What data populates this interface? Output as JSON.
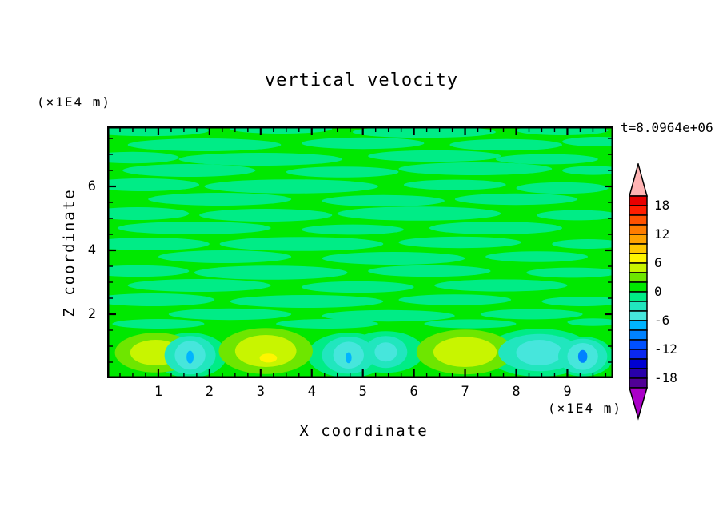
{
  "title": "vertical velocity",
  "time_label": "t=8.0964e+06",
  "x_axis": {
    "label": "X coordinate",
    "unit_label": "(×1E4 m)",
    "ticks": [
      1,
      2,
      3,
      4,
      5,
      6,
      7,
      8,
      9
    ]
  },
  "y_axis": {
    "label": "Z coordinate",
    "unit_label": "(×1E4 m)",
    "ticks": [
      2,
      4,
      6
    ]
  },
  "colorbar": {
    "tick_labels": [
      18,
      12,
      6,
      0,
      -6,
      -12,
      -18
    ],
    "over_color": "#FFB4B4",
    "under_color": "#AA00C8",
    "palette_top_to_bottom": [
      "#E80000",
      "#FF1E00",
      "#FF5200",
      "#FF7D00",
      "#FFA300",
      "#FFC800",
      "#FFF500",
      "#C8F500",
      "#6EE600",
      "#00E800",
      "#00EC86",
      "#21E6BE",
      "#46E6DC",
      "#00B4FF",
      "#0082FF",
      "#0050FF",
      "#0A28F0",
      "#0000D2",
      "#2800AA",
      "#500096"
    ]
  },
  "chart_data": {
    "type": "filled_contour",
    "title": "vertical velocity",
    "xlabel": "X coordinate (×1E4 m)",
    "ylabel": "Z coordinate (×1E4 m)",
    "time_annotation": "t=8.0964e+06",
    "x_range": [
      0,
      9.9
    ],
    "z_range": [
      0,
      7.875
    ],
    "x_major_ticks": [
      1,
      2,
      3,
      4,
      5,
      6,
      7,
      8,
      9
    ],
    "x_minor_step": 0.25,
    "z_major_ticks": [
      2,
      4,
      6
    ],
    "z_minor_step": 0.5,
    "contour_levels": {
      "min": -20,
      "max": 20,
      "step": 2
    },
    "colorbar_labeled_levels": [
      18,
      12,
      6,
      0,
      -6,
      -12,
      -18
    ],
    "field_summary": "Upper region (z>1.6): wavy horizontal streaks alternating between the 0..2 level (bright green) and the -2..0 level (spring green), amplitude within ±2. Bottom boundary layer (z<1.6): convective cells — updraft maxima near x=1 (peak 4..6), x=3.1 (peak 6..8) and x=7 (peak 4..6); downdraft minima near x=1.6 and x=4.7 (min -8..-6), x=5.45 and x=8.45 (min -6..-4), x=9.3 (min -10..-8).",
    "background_color": "#00E800",
    "streak_color": "#00EC86",
    "streak_format": "[x_center, z_center, x_radius, z_radius] in data units, level -2..0",
    "streaks": [
      [
        0.8,
        7.75,
        1.2,
        0.18
      ],
      [
        3.4,
        7.8,
        1.0,
        0.15
      ],
      [
        6.2,
        7.7,
        1.4,
        0.18
      ],
      [
        8.9,
        7.75,
        0.9,
        0.15
      ],
      [
        1.9,
        7.3,
        1.5,
        0.2
      ],
      [
        5.0,
        7.35,
        1.2,
        0.18
      ],
      [
        7.8,
        7.3,
        1.1,
        0.18
      ],
      [
        9.6,
        7.4,
        0.7,
        0.15
      ],
      [
        0.5,
        6.9,
        0.9,
        0.18
      ],
      [
        3.0,
        6.85,
        1.6,
        0.2
      ],
      [
        6.4,
        6.95,
        1.3,
        0.18
      ],
      [
        8.6,
        6.85,
        1.0,
        0.16
      ],
      [
        1.6,
        6.5,
        1.3,
        0.2
      ],
      [
        4.6,
        6.45,
        1.1,
        0.17
      ],
      [
        7.2,
        6.55,
        1.5,
        0.2
      ],
      [
        9.5,
        6.5,
        0.6,
        0.14
      ],
      [
        0.7,
        6.05,
        1.1,
        0.2
      ],
      [
        3.6,
        6.0,
        1.7,
        0.22
      ],
      [
        6.8,
        6.05,
        1.0,
        0.16
      ],
      [
        8.9,
        5.95,
        0.9,
        0.18
      ],
      [
        2.2,
        5.6,
        1.4,
        0.2
      ],
      [
        5.4,
        5.55,
        1.2,
        0.18
      ],
      [
        8.0,
        5.6,
        1.2,
        0.18
      ],
      [
        0.6,
        5.15,
        1.0,
        0.2
      ],
      [
        3.1,
        5.1,
        1.3,
        0.2
      ],
      [
        6.1,
        5.15,
        1.6,
        0.22
      ],
      [
        9.2,
        5.1,
        0.8,
        0.16
      ],
      [
        1.7,
        4.7,
        1.5,
        0.2
      ],
      [
        4.8,
        4.65,
        1.0,
        0.16
      ],
      [
        7.6,
        4.7,
        1.3,
        0.2
      ],
      [
        0.8,
        4.2,
        1.2,
        0.2
      ],
      [
        3.8,
        4.2,
        1.6,
        0.22
      ],
      [
        6.9,
        4.25,
        1.2,
        0.18
      ],
      [
        9.4,
        4.2,
        0.7,
        0.15
      ],
      [
        2.3,
        3.8,
        1.3,
        0.2
      ],
      [
        5.6,
        3.75,
        1.4,
        0.2
      ],
      [
        8.4,
        3.8,
        1.0,
        0.17
      ],
      [
        0.6,
        3.35,
        1.0,
        0.18
      ],
      [
        3.2,
        3.3,
        1.5,
        0.22
      ],
      [
        6.3,
        3.35,
        1.2,
        0.18
      ],
      [
        9.1,
        3.3,
        0.9,
        0.16
      ],
      [
        1.8,
        2.9,
        1.4,
        0.2
      ],
      [
        4.9,
        2.85,
        1.1,
        0.18
      ],
      [
        7.7,
        2.9,
        1.3,
        0.19
      ],
      [
        0.9,
        2.45,
        1.2,
        0.2
      ],
      [
        3.9,
        2.4,
        1.5,
        0.2
      ],
      [
        6.8,
        2.45,
        1.1,
        0.17
      ],
      [
        9.3,
        2.4,
        0.8,
        0.15
      ],
      [
        2.4,
        2.0,
        1.2,
        0.18
      ],
      [
        5.5,
        1.95,
        1.3,
        0.18
      ],
      [
        8.3,
        2.0,
        1.0,
        0.16
      ],
      [
        1.0,
        1.7,
        0.9,
        0.15
      ],
      [
        4.3,
        1.7,
        1.0,
        0.15
      ],
      [
        7.1,
        1.7,
        0.9,
        0.14
      ],
      [
        9.5,
        1.75,
        0.5,
        0.12
      ]
    ],
    "cells": [
      {
        "name": "updraft-1",
        "cx": 0.95,
        "cz": 0.8,
        "rings": [
          {
            "level": "2 to 4",
            "color": "#6EE600",
            "rx": 0.8,
            "rz": 0.62
          },
          {
            "level": "4 to 6",
            "color": "#C8F500",
            "rx": 0.5,
            "rz": 0.4
          }
        ]
      },
      {
        "name": "downdraft-1",
        "cx": 1.62,
        "cz": 0.72,
        "wash": {
          "rx": 0.72,
          "rz": 0.7
        },
        "rings": [
          {
            "level": "-4 to -2",
            "color": "#21E6BE",
            "rx": 0.5,
            "rz": 0.6
          },
          {
            "level": "-6 to -4",
            "color": "#46E6DC",
            "rx": 0.3,
            "rz": 0.45
          },
          {
            "level": "-8 to -6",
            "color": "#00B4FF",
            "rx": 0.07,
            "rz": 0.2,
            "dcz": -0.06
          }
        ]
      },
      {
        "name": "updraft-2",
        "cx": 3.1,
        "cz": 0.85,
        "rings": [
          {
            "level": "2 to 4",
            "color": "#6EE600",
            "rx": 0.92,
            "rz": 0.72
          },
          {
            "level": "4 to 6",
            "color": "#C8F500",
            "rx": 0.6,
            "rz": 0.5
          },
          {
            "level": "6 to 8",
            "color": "#FFF500",
            "rx": 0.17,
            "rz": 0.14,
            "dcx": 0.05,
            "dcz": -0.22
          }
        ]
      },
      {
        "name": "downdraft-2",
        "cx": 4.72,
        "cz": 0.72,
        "wash": {
          "rx": 0.8,
          "rz": 0.7
        },
        "rings": [
          {
            "level": "-4 to -2",
            "color": "#21E6BE",
            "rx": 0.52,
            "rz": 0.58
          },
          {
            "level": "-6 to -4",
            "color": "#46E6DC",
            "rx": 0.3,
            "rz": 0.42
          },
          {
            "level": "-8 to -6",
            "color": "#00B4FF",
            "rx": 0.06,
            "rz": 0.17,
            "dcz": -0.08
          }
        ]
      },
      {
        "name": "downdraft-3",
        "cx": 5.45,
        "cz": 0.82,
        "wash": {
          "rx": 0.75,
          "rz": 0.65
        },
        "rings": [
          {
            "level": "-4 to -2",
            "color": "#21E6BE",
            "rx": 0.42,
            "rz": 0.5
          },
          {
            "level": "-6 to -4",
            "color": "#46E6DC",
            "rx": 0.22,
            "rz": 0.3
          }
        ]
      },
      {
        "name": "updraft-3",
        "cx": 7.0,
        "cz": 0.82,
        "rings": [
          {
            "level": "2 to 4",
            "color": "#6EE600",
            "rx": 0.95,
            "rz": 0.7
          },
          {
            "level": "4 to 6",
            "color": "#C8F500",
            "rx": 0.62,
            "rz": 0.47
          }
        ]
      },
      {
        "name": "downdraft-4",
        "cx": 8.45,
        "cz": 0.8,
        "wash": {
          "rx": 1.05,
          "rz": 0.75
        },
        "rings": [
          {
            "level": "-4 to -2",
            "color": "#21E6BE",
            "rx": 0.8,
            "rz": 0.58
          },
          {
            "level": "-6 to -4",
            "color": "#46E6DC",
            "rx": 0.45,
            "rz": 0.4
          }
        ]
      },
      {
        "name": "downdraft-5",
        "cx": 9.3,
        "cz": 0.68,
        "wash": {
          "rx": 0.6,
          "rz": 0.62
        },
        "rings": [
          {
            "level": "-4 to -2",
            "color": "#21E6BE",
            "rx": 0.48,
            "rz": 0.55
          },
          {
            "level": "-6 to -4",
            "color": "#46E6DC",
            "rx": 0.3,
            "rz": 0.42
          },
          {
            "level": "-10 to -8",
            "color": "#0082FF",
            "rx": 0.09,
            "rz": 0.2
          }
        ]
      }
    ]
  }
}
